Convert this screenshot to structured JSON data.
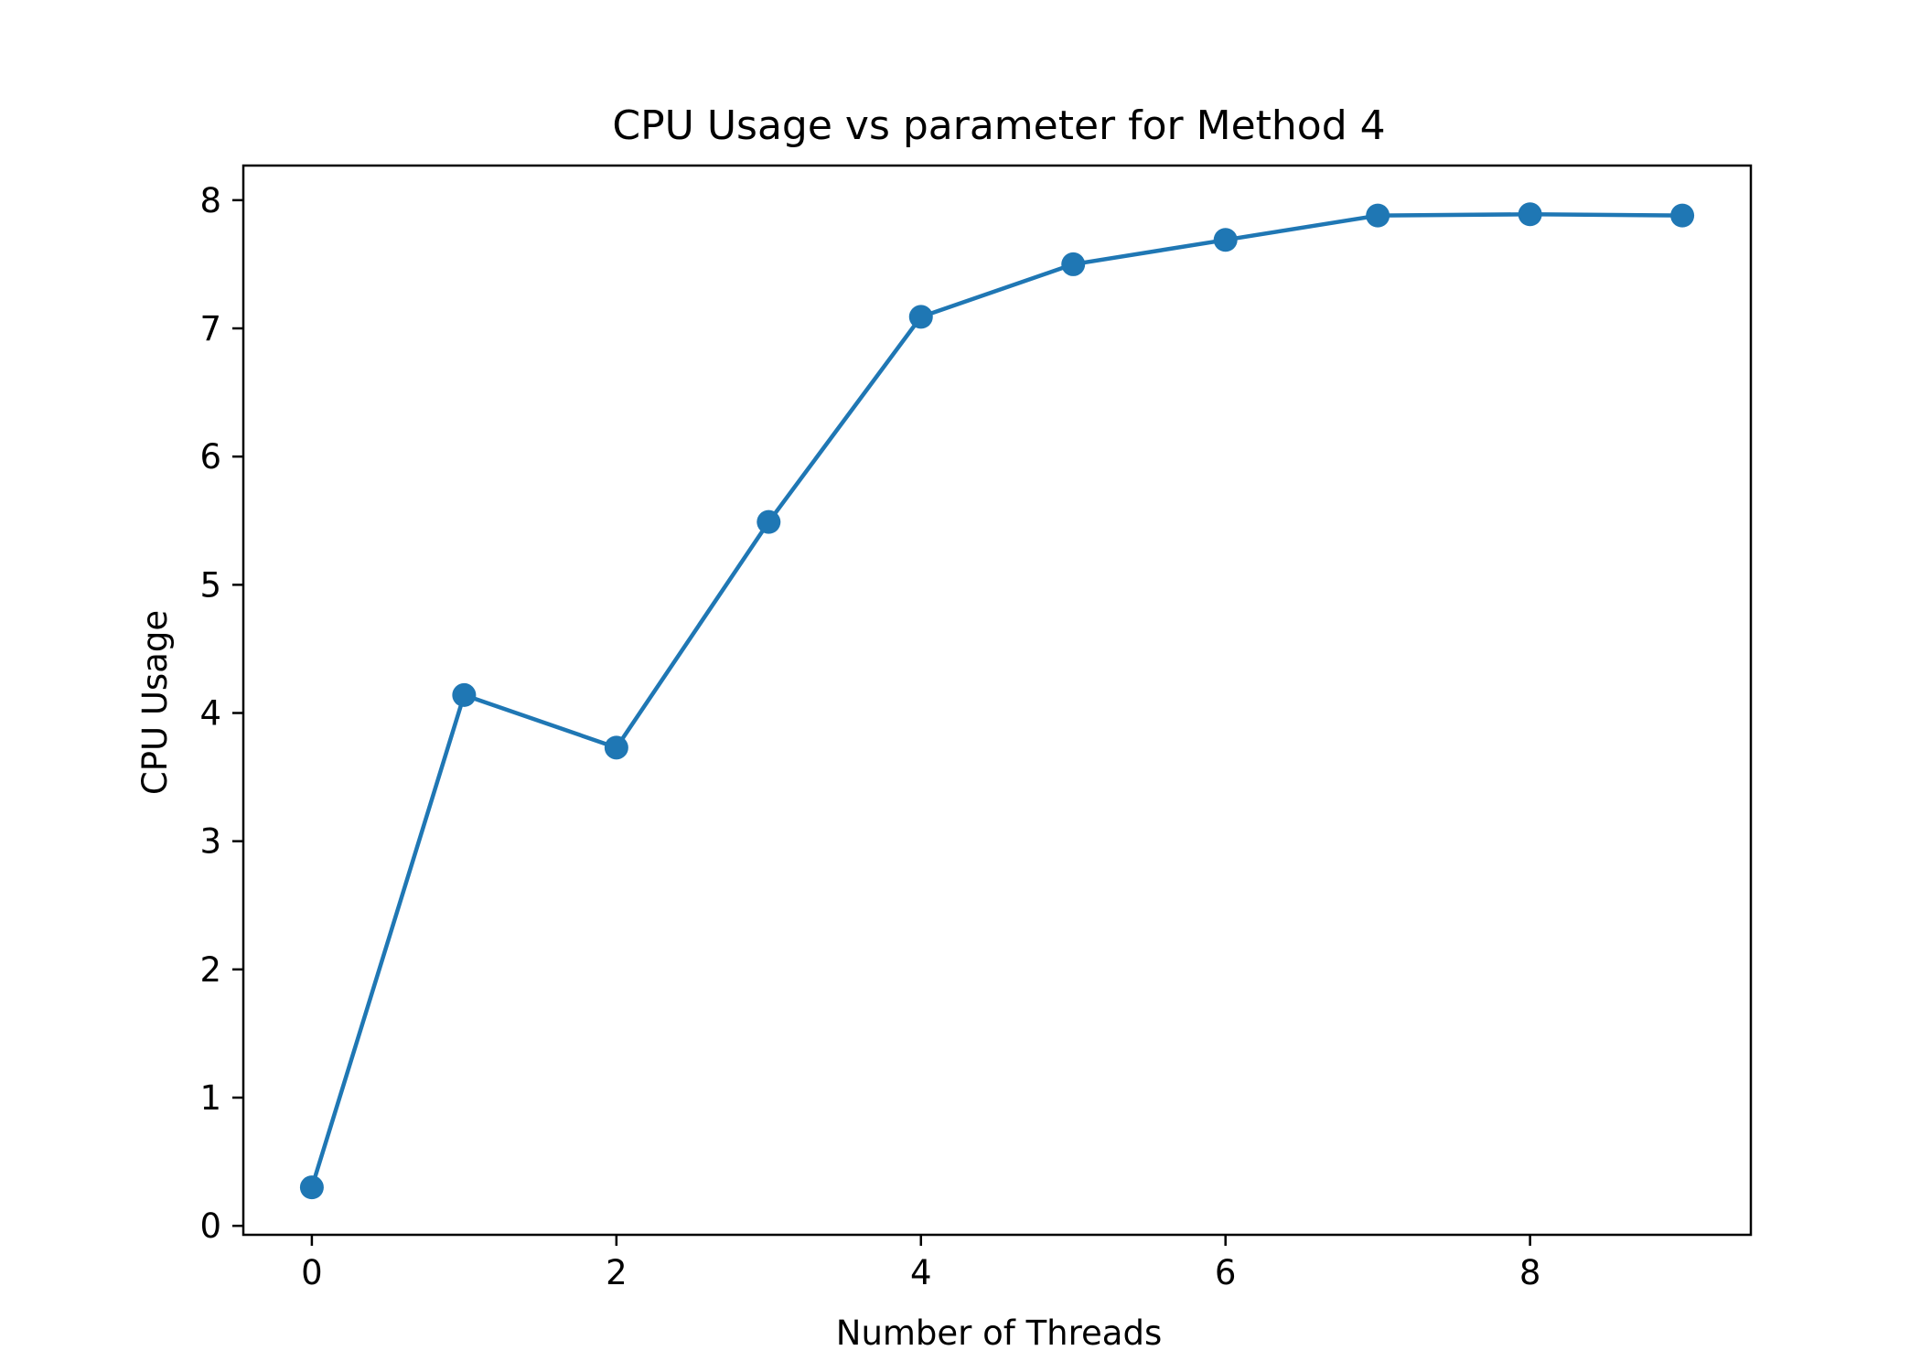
{
  "chart_data": {
    "type": "line",
    "title": "CPU Usage vs parameter for Method 4",
    "xlabel": "Number of Threads",
    "ylabel": "CPU Usage",
    "xlim": [
      -0.45,
      9.45
    ],
    "ylim": [
      -0.07,
      8.27
    ],
    "xticks": [
      0,
      2,
      4,
      6,
      8
    ],
    "yticks": [
      0,
      1,
      2,
      3,
      4,
      5,
      6,
      7,
      8
    ],
    "grid": false,
    "legend": "none",
    "series": [
      {
        "color": "#1f77b4",
        "marker": "circle",
        "x": [
          0,
          1,
          2,
          3,
          4,
          5,
          6,
          7,
          8,
          9
        ],
        "values": [
          0.3,
          4.14,
          3.73,
          5.49,
          7.09,
          7.5,
          7.69,
          7.88,
          7.89,
          7.88
        ]
      }
    ]
  }
}
